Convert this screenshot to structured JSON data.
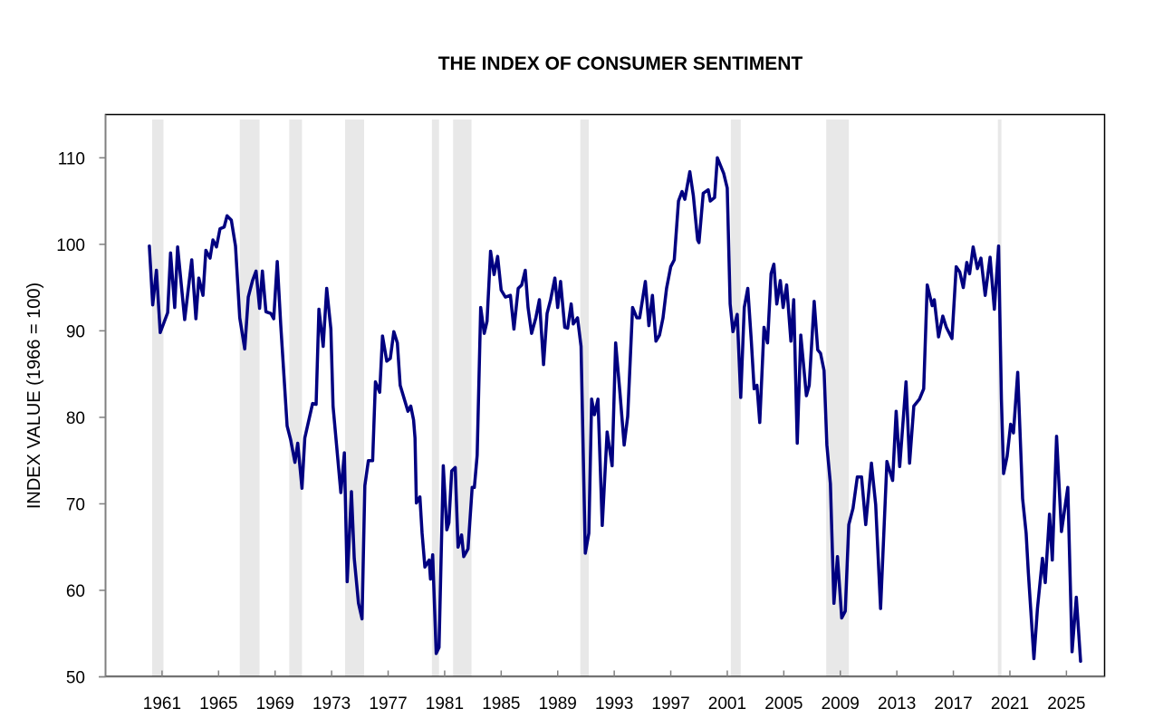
{
  "chart_data": {
    "type": "line",
    "title": "THE INDEX OF CONSUMER SENTIMENT",
    "xlabel": "",
    "ylabel": "INDEX VALUE (1966 = 100)",
    "xlim": [
      1957.0,
      2027.7
    ],
    "ylim": [
      50,
      115
    ],
    "grid": false,
    "x_ticks": [
      "1961",
      "1965",
      "1969",
      "1973",
      "1977",
      "1981",
      "1985",
      "1989",
      "1993",
      "1997",
      "2001",
      "2005",
      "2009",
      "2013",
      "2017",
      "2021",
      "2025"
    ],
    "y_ticks": [
      "50",
      "60",
      "70",
      "80",
      "90",
      "100",
      "110"
    ],
    "colors": {
      "line": "#000080",
      "recession": "#e8e8e8",
      "frame": "#000000",
      "axis": "#808080"
    },
    "recessions": [
      [
        1960.3,
        1961.1
      ],
      [
        1966.5,
        1967.9
      ],
      [
        1970.0,
        1970.9
      ],
      [
        1973.95,
        1975.3
      ],
      [
        1980.1,
        1980.6
      ],
      [
        1981.6,
        1982.9
      ],
      [
        1990.6,
        1991.2
      ],
      [
        2001.25,
        2001.95
      ],
      [
        2008.0,
        2009.6
      ],
      [
        2020.15,
        2020.4
      ]
    ],
    "series": [
      {
        "name": "Index of Consumer Sentiment",
        "points": [
          [
            1960.1,
            99.8
          ],
          [
            1960.34,
            93.0
          ],
          [
            1960.6,
            97.0
          ],
          [
            1960.87,
            89.8
          ],
          [
            1961.4,
            92.1
          ],
          [
            1961.6,
            99.0
          ],
          [
            1961.9,
            92.7
          ],
          [
            1962.1,
            99.7
          ],
          [
            1962.6,
            91.3
          ],
          [
            1963.1,
            98.2
          ],
          [
            1963.4,
            91.4
          ],
          [
            1963.6,
            96.1
          ],
          [
            1963.9,
            94.1
          ],
          [
            1964.1,
            99.3
          ],
          [
            1964.4,
            98.4
          ],
          [
            1964.6,
            100.5
          ],
          [
            1964.85,
            99.7
          ],
          [
            1965.1,
            101.8
          ],
          [
            1965.4,
            102.0
          ],
          [
            1965.6,
            103.3
          ],
          [
            1965.9,
            102.8
          ],
          [
            1966.2,
            99.8
          ],
          [
            1966.5,
            91.5
          ],
          [
            1966.85,
            87.9
          ],
          [
            1967.1,
            93.9
          ],
          [
            1967.4,
            95.8
          ],
          [
            1967.65,
            96.9
          ],
          [
            1967.9,
            92.6
          ],
          [
            1968.1,
            96.9
          ],
          [
            1968.35,
            92.2
          ],
          [
            1968.7,
            92.0
          ],
          [
            1968.9,
            91.4
          ],
          [
            1969.15,
            98.0
          ],
          [
            1969.4,
            90.6
          ],
          [
            1969.85,
            79.0
          ],
          [
            1970.1,
            77.4
          ],
          [
            1970.4,
            74.8
          ],
          [
            1970.6,
            77.0
          ],
          [
            1970.9,
            71.8
          ],
          [
            1971.1,
            77.6
          ],
          [
            1971.65,
            81.6
          ],
          [
            1971.9,
            81.5
          ],
          [
            1972.1,
            92.5
          ],
          [
            1972.4,
            88.2
          ],
          [
            1972.65,
            94.9
          ],
          [
            1972.95,
            90.2
          ],
          [
            1973.1,
            81.3
          ],
          [
            1973.65,
            71.3
          ],
          [
            1973.9,
            75.9
          ],
          [
            1974.1,
            61.0
          ],
          [
            1974.4,
            71.4
          ],
          [
            1974.6,
            63.7
          ],
          [
            1974.9,
            58.5
          ],
          [
            1975.15,
            56.7
          ],
          [
            1975.35,
            72.1
          ],
          [
            1975.6,
            75.0
          ],
          [
            1975.9,
            75.0
          ],
          [
            1976.1,
            84.1
          ],
          [
            1976.4,
            82.9
          ],
          [
            1976.6,
            89.4
          ],
          [
            1976.9,
            86.5
          ],
          [
            1977.15,
            86.8
          ],
          [
            1977.4,
            89.9
          ],
          [
            1977.65,
            88.6
          ],
          [
            1977.85,
            83.7
          ],
          [
            1978.4,
            80.7
          ],
          [
            1978.6,
            81.3
          ],
          [
            1978.8,
            79.7
          ],
          [
            1978.9,
            77.6
          ],
          [
            1979.0,
            70.1
          ],
          [
            1979.25,
            70.8
          ],
          [
            1979.4,
            66.6
          ],
          [
            1979.6,
            62.7
          ],
          [
            1979.9,
            63.5
          ],
          [
            1980.0,
            61.3
          ],
          [
            1980.15,
            64.1
          ],
          [
            1980.4,
            52.7
          ],
          [
            1980.6,
            53.4
          ],
          [
            1980.9,
            74.4
          ],
          [
            1981.15,
            67.0
          ],
          [
            1981.3,
            67.8
          ],
          [
            1981.5,
            73.8
          ],
          [
            1981.75,
            74.2
          ],
          [
            1981.95,
            65.0
          ],
          [
            1982.2,
            66.4
          ],
          [
            1982.35,
            63.9
          ],
          [
            1982.65,
            64.8
          ],
          [
            1982.95,
            71.9
          ],
          [
            1983.1,
            71.9
          ],
          [
            1983.3,
            75.6
          ],
          [
            1983.55,
            92.7
          ],
          [
            1983.8,
            89.7
          ],
          [
            1984.0,
            91.1
          ],
          [
            1984.25,
            99.2
          ],
          [
            1984.5,
            96.5
          ],
          [
            1984.75,
            98.6
          ],
          [
            1985.0,
            94.7
          ],
          [
            1985.3,
            93.9
          ],
          [
            1985.65,
            94.1
          ],
          [
            1985.9,
            90.2
          ],
          [
            1986.2,
            94.9
          ],
          [
            1986.45,
            95.3
          ],
          [
            1986.7,
            97.0
          ],
          [
            1986.9,
            92.7
          ],
          [
            1987.15,
            89.7
          ],
          [
            1987.45,
            91.5
          ],
          [
            1987.7,
            93.6
          ],
          [
            1988.0,
            86.1
          ],
          [
            1988.25,
            92.0
          ],
          [
            1988.5,
            93.6
          ],
          [
            1988.8,
            96.1
          ],
          [
            1989.0,
            92.7
          ],
          [
            1989.2,
            95.7
          ],
          [
            1989.5,
            90.4
          ],
          [
            1989.7,
            90.3
          ],
          [
            1989.95,
            93.1
          ],
          [
            1990.1,
            90.8
          ],
          [
            1990.4,
            91.5
          ],
          [
            1990.65,
            88.2
          ],
          [
            1990.95,
            64.3
          ],
          [
            1991.2,
            66.6
          ],
          [
            1991.4,
            82.1
          ],
          [
            1991.6,
            80.3
          ],
          [
            1991.85,
            82.1
          ],
          [
            1992.15,
            67.5
          ],
          [
            1992.5,
            78.3
          ],
          [
            1992.85,
            74.4
          ],
          [
            1993.1,
            88.6
          ],
          [
            1993.4,
            82.9
          ],
          [
            1993.7,
            76.8
          ],
          [
            1993.95,
            80.1
          ],
          [
            1994.3,
            92.7
          ],
          [
            1994.6,
            91.5
          ],
          [
            1994.8,
            91.5
          ],
          [
            1995.2,
            95.7
          ],
          [
            1995.45,
            90.6
          ],
          [
            1995.7,
            94.1
          ],
          [
            1995.95,
            88.8
          ],
          [
            1996.2,
            89.5
          ],
          [
            1996.45,
            91.5
          ],
          [
            1996.7,
            94.9
          ],
          [
            1997.0,
            97.4
          ],
          [
            1997.25,
            98.2
          ],
          [
            1997.55,
            105.0
          ],
          [
            1997.8,
            106.1
          ],
          [
            1998.0,
            105.2
          ],
          [
            1998.35,
            108.4
          ],
          [
            1998.6,
            105.6
          ],
          [
            1998.9,
            100.5
          ],
          [
            1999.0,
            100.2
          ],
          [
            1999.3,
            105.9
          ],
          [
            1999.65,
            106.3
          ],
          [
            1999.8,
            105.0
          ],
          [
            2000.1,
            105.4
          ],
          [
            2000.3,
            110.0
          ],
          [
            2000.75,
            108.2
          ],
          [
            2001.0,
            106.5
          ],
          [
            2001.2,
            93.1
          ],
          [
            2001.4,
            89.9
          ],
          [
            2001.7,
            91.9
          ],
          [
            2001.95,
            82.3
          ],
          [
            2002.2,
            92.7
          ],
          [
            2002.45,
            94.9
          ],
          [
            2002.7,
            88.8
          ],
          [
            2002.9,
            83.3
          ],
          [
            2003.1,
            83.7
          ],
          [
            2003.3,
            79.4
          ],
          [
            2003.6,
            90.4
          ],
          [
            2003.85,
            88.6
          ],
          [
            2004.1,
            96.6
          ],
          [
            2004.3,
            97.7
          ],
          [
            2004.5,
            93.1
          ],
          [
            2004.75,
            95.8
          ],
          [
            2004.95,
            92.7
          ],
          [
            2005.2,
            95.3
          ],
          [
            2005.5,
            88.8
          ],
          [
            2005.7,
            93.6
          ],
          [
            2005.95,
            77.0
          ],
          [
            2006.2,
            89.5
          ],
          [
            2006.6,
            82.5
          ],
          [
            2006.8,
            83.7
          ],
          [
            2007.15,
            93.4
          ],
          [
            2007.4,
            87.8
          ],
          [
            2007.6,
            87.4
          ],
          [
            2007.85,
            85.4
          ],
          [
            2008.05,
            76.8
          ],
          [
            2008.3,
            72.3
          ],
          [
            2008.55,
            58.5
          ],
          [
            2008.8,
            63.9
          ],
          [
            2009.1,
            56.8
          ],
          [
            2009.35,
            57.6
          ],
          [
            2009.6,
            67.6
          ],
          [
            2009.9,
            69.5
          ],
          [
            2010.2,
            73.1
          ],
          [
            2010.5,
            73.1
          ],
          [
            2010.8,
            67.6
          ],
          [
            2011.2,
            74.7
          ],
          [
            2011.5,
            69.9
          ],
          [
            2011.85,
            57.9
          ],
          [
            2012.3,
            74.9
          ],
          [
            2012.7,
            72.7
          ],
          [
            2012.95,
            80.7
          ],
          [
            2013.2,
            74.3
          ],
          [
            2013.65,
            84.1
          ],
          [
            2013.9,
            74.7
          ],
          [
            2014.2,
            81.3
          ],
          [
            2014.6,
            82.1
          ],
          [
            2014.9,
            83.3
          ],
          [
            2015.15,
            95.3
          ],
          [
            2015.5,
            92.9
          ],
          [
            2015.65,
            93.6
          ],
          [
            2015.95,
            89.3
          ],
          [
            2016.25,
            91.7
          ],
          [
            2016.5,
            90.4
          ],
          [
            2016.9,
            89.1
          ],
          [
            2017.2,
            97.4
          ],
          [
            2017.45,
            96.8
          ],
          [
            2017.7,
            95.0
          ],
          [
            2017.95,
            97.9
          ],
          [
            2018.15,
            96.6
          ],
          [
            2018.4,
            99.7
          ],
          [
            2018.7,
            97.2
          ],
          [
            2018.95,
            98.4
          ],
          [
            2019.25,
            94.1
          ],
          [
            2019.6,
            98.5
          ],
          [
            2019.9,
            92.5
          ],
          [
            2020.2,
            99.8
          ],
          [
            2020.4,
            82.1
          ],
          [
            2020.55,
            73.5
          ],
          [
            2020.8,
            75.5
          ],
          [
            2021.05,
            79.2
          ],
          [
            2021.25,
            78.2
          ],
          [
            2021.55,
            85.2
          ],
          [
            2021.9,
            70.6
          ],
          [
            2022.15,
            66.6
          ],
          [
            2022.3,
            62.1
          ],
          [
            2022.7,
            52.1
          ],
          [
            2022.95,
            57.9
          ],
          [
            2023.3,
            63.7
          ],
          [
            2023.5,
            60.9
          ],
          [
            2023.8,
            68.8
          ],
          [
            2024.0,
            63.5
          ],
          [
            2024.3,
            77.8
          ],
          [
            2024.65,
            66.8
          ],
          [
            2025.1,
            71.9
          ],
          [
            2025.4,
            52.9
          ],
          [
            2025.7,
            59.2
          ],
          [
            2026.0,
            51.8
          ]
        ]
      }
    ]
  }
}
